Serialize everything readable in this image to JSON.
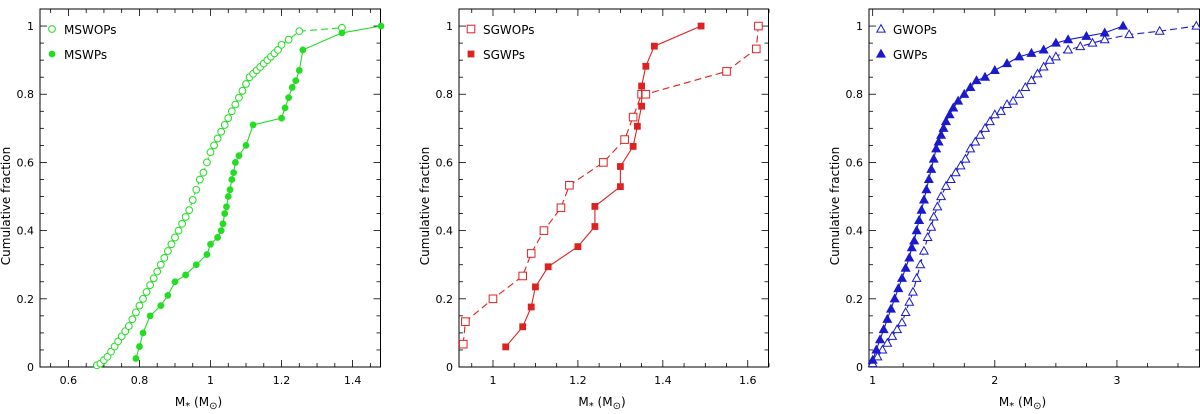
{
  "chart_data": [
    {
      "type": "line",
      "title": "",
      "xlabel": "M",
      "xlabel_sub": "*",
      "xlabel_unit": "(M",
      "xlabel_unit_end": ")",
      "ylabel": "Cumulative fraction",
      "xlim": [
        0.52,
        1.48
      ],
      "ylim": [
        0,
        1.05
      ],
      "xticks": [
        0.6,
        0.8,
        1.0,
        1.2,
        1.4
      ],
      "xtick_labels": [
        "0.6",
        "0.8",
        "1",
        "1.2",
        "1.4"
      ],
      "yticks": [
        0,
        0.2,
        0.4,
        0.6,
        0.8,
        1.0
      ],
      "ytick_labels": [
        "0",
        "0.2",
        "0.4",
        "0.6",
        "0.8",
        "1"
      ],
      "color": "#22dd22",
      "series": [
        {
          "name": "MSWOPs",
          "marker": "circle-open",
          "line": "dashed",
          "x": [
            0.68,
            0.69,
            0.7,
            0.71,
            0.72,
            0.73,
            0.74,
            0.75,
            0.76,
            0.77,
            0.78,
            0.79,
            0.8,
            0.81,
            0.82,
            0.83,
            0.84,
            0.85,
            0.86,
            0.87,
            0.88,
            0.89,
            0.9,
            0.91,
            0.92,
            0.93,
            0.94,
            0.95,
            0.96,
            0.97,
            0.98,
            0.99,
            1.0,
            1.01,
            1.02,
            1.03,
            1.04,
            1.05,
            1.06,
            1.07,
            1.08,
            1.09,
            1.1,
            1.11,
            1.12,
            1.13,
            1.14,
            1.15,
            1.16,
            1.17,
            1.18,
            1.19,
            1.2,
            1.22,
            1.25,
            1.37
          ],
          "y": [
            0.005,
            0.01,
            0.02,
            0.03,
            0.045,
            0.06,
            0.075,
            0.09,
            0.105,
            0.12,
            0.14,
            0.16,
            0.18,
            0.2,
            0.22,
            0.24,
            0.26,
            0.28,
            0.3,
            0.32,
            0.34,
            0.36,
            0.38,
            0.4,
            0.42,
            0.44,
            0.46,
            0.49,
            0.52,
            0.55,
            0.57,
            0.6,
            0.63,
            0.65,
            0.67,
            0.69,
            0.71,
            0.73,
            0.75,
            0.77,
            0.79,
            0.81,
            0.83,
            0.85,
            0.86,
            0.87,
            0.88,
            0.89,
            0.9,
            0.91,
            0.92,
            0.93,
            0.945,
            0.96,
            0.985,
            0.995
          ]
        },
        {
          "name": "MSWPs",
          "marker": "circle-filled",
          "line": "solid",
          "x": [
            0.79,
            0.8,
            0.81,
            0.83,
            0.86,
            0.88,
            0.9,
            0.93,
            0.96,
            0.99,
            1.0,
            1.02,
            1.03,
            1.035,
            1.04,
            1.045,
            1.05,
            1.055,
            1.06,
            1.065,
            1.07,
            1.08,
            1.1,
            1.12,
            1.2,
            1.21,
            1.22,
            1.23,
            1.24,
            1.25,
            1.26,
            1.37,
            1.48
          ],
          "y": [
            0.025,
            0.06,
            0.1,
            0.15,
            0.18,
            0.21,
            0.25,
            0.27,
            0.3,
            0.33,
            0.36,
            0.38,
            0.4,
            0.42,
            0.45,
            0.47,
            0.5,
            0.52,
            0.55,
            0.57,
            0.6,
            0.62,
            0.65,
            0.71,
            0.73,
            0.76,
            0.79,
            0.82,
            0.84,
            0.87,
            0.93,
            0.98,
            1.0
          ]
        }
      ]
    },
    {
      "type": "line",
      "title": "",
      "xlabel": "M",
      "xlabel_sub": "*",
      "xlabel_unit": "(M",
      "xlabel_unit_end": ")",
      "ylabel": "Cumulative fraction",
      "xlim": [
        0.92,
        1.65
      ],
      "ylim": [
        0,
        1.05
      ],
      "xticks": [
        1.0,
        1.2,
        1.4,
        1.6
      ],
      "xtick_labels": [
        "1",
        "1.2",
        "1.4",
        "1.6"
      ],
      "yticks": [
        0,
        0.2,
        0.4,
        0.6,
        0.8,
        1.0
      ],
      "ytick_labels": [
        "0",
        "0.2",
        "0.4",
        "0.6",
        "0.8",
        "1"
      ],
      "color": "#dd2222",
      "series": [
        {
          "name": "SGWOPs",
          "marker": "square-open",
          "line": "dashed",
          "x": [
            0.93,
            0.935,
            1.0,
            1.07,
            1.09,
            1.12,
            1.16,
            1.18,
            1.26,
            1.31,
            1.33,
            1.35,
            1.36,
            1.55,
            1.62,
            1.625
          ],
          "y": [
            0.067,
            0.133,
            0.2,
            0.267,
            0.333,
            0.4,
            0.467,
            0.533,
            0.6,
            0.667,
            0.733,
            0.8,
            0.8,
            0.867,
            0.933,
            1.0
          ]
        },
        {
          "name": "SGWPs",
          "marker": "square-filled",
          "line": "solid",
          "x": [
            1.03,
            1.07,
            1.09,
            1.1,
            1.13,
            1.2,
            1.24,
            1.24,
            1.3,
            1.3,
            1.33,
            1.34,
            1.35,
            1.35,
            1.36,
            1.38,
            1.49
          ],
          "y": [
            0.059,
            0.118,
            0.176,
            0.235,
            0.294,
            0.353,
            0.412,
            0.471,
            0.529,
            0.588,
            0.647,
            0.706,
            0.765,
            0.824,
            0.882,
            0.941,
            1.0
          ]
        }
      ]
    },
    {
      "type": "line",
      "title": "",
      "xlabel": "M",
      "xlabel_sub": "*",
      "xlabel_unit": "(M",
      "xlabel_unit_end": ")",
      "ylabel": "Cumulative fraction",
      "xlim": [
        0.97,
        3.68
      ],
      "ylim": [
        0,
        1.05
      ],
      "xticks": [
        1,
        2,
        3
      ],
      "xtick_labels": [
        "1",
        "2",
        "3"
      ],
      "yticks": [
        0,
        0.2,
        0.4,
        0.6,
        0.8,
        1.0
      ],
      "ytick_labels": [
        "0",
        "0.2",
        "0.4",
        "0.6",
        "0.8",
        "1"
      ],
      "color": "#1a1acc",
      "series": [
        {
          "name": "GWOPs",
          "marker": "triangle-open",
          "line": "dashed",
          "x": [
            1.0,
            1.04,
            1.08,
            1.12,
            1.16,
            1.2,
            1.24,
            1.27,
            1.3,
            1.33,
            1.36,
            1.39,
            1.42,
            1.45,
            1.48,
            1.5,
            1.53,
            1.56,
            1.6,
            1.64,
            1.68,
            1.72,
            1.76,
            1.8,
            1.84,
            1.88,
            1.92,
            1.96,
            2.0,
            2.05,
            2.1,
            2.15,
            2.2,
            2.25,
            2.3,
            2.35,
            2.4,
            2.45,
            2.5,
            2.6,
            2.7,
            2.8,
            2.9,
            3.1,
            3.35,
            3.65
          ],
          "y": [
            0.01,
            0.03,
            0.05,
            0.07,
            0.09,
            0.11,
            0.13,
            0.16,
            0.19,
            0.22,
            0.26,
            0.3,
            0.34,
            0.38,
            0.41,
            0.44,
            0.47,
            0.5,
            0.53,
            0.55,
            0.57,
            0.59,
            0.61,
            0.64,
            0.66,
            0.68,
            0.7,
            0.72,
            0.74,
            0.75,
            0.77,
            0.78,
            0.8,
            0.82,
            0.84,
            0.86,
            0.88,
            0.9,
            0.91,
            0.93,
            0.94,
            0.95,
            0.96,
            0.975,
            0.985,
            1.0
          ]
        },
        {
          "name": "GWPs",
          "marker": "triangle-filled",
          "line": "solid",
          "x": [
            1.0,
            1.03,
            1.06,
            1.09,
            1.12,
            1.15,
            1.18,
            1.21,
            1.24,
            1.27,
            1.3,
            1.32,
            1.34,
            1.36,
            1.38,
            1.4,
            1.42,
            1.44,
            1.46,
            1.48,
            1.5,
            1.52,
            1.54,
            1.56,
            1.58,
            1.6,
            1.63,
            1.66,
            1.7,
            1.75,
            1.8,
            1.85,
            1.92,
            2.0,
            2.1,
            2.2,
            2.3,
            2.4,
            2.5,
            2.6,
            2.75,
            2.9,
            3.05
          ],
          "y": [
            0.02,
            0.05,
            0.08,
            0.11,
            0.14,
            0.17,
            0.2,
            0.23,
            0.26,
            0.29,
            0.32,
            0.35,
            0.37,
            0.4,
            0.43,
            0.46,
            0.49,
            0.52,
            0.55,
            0.58,
            0.61,
            0.64,
            0.66,
            0.68,
            0.7,
            0.72,
            0.74,
            0.76,
            0.78,
            0.8,
            0.82,
            0.84,
            0.85,
            0.87,
            0.89,
            0.91,
            0.92,
            0.93,
            0.95,
            0.96,
            0.97,
            0.98,
            1.0
          ]
        }
      ]
    }
  ]
}
